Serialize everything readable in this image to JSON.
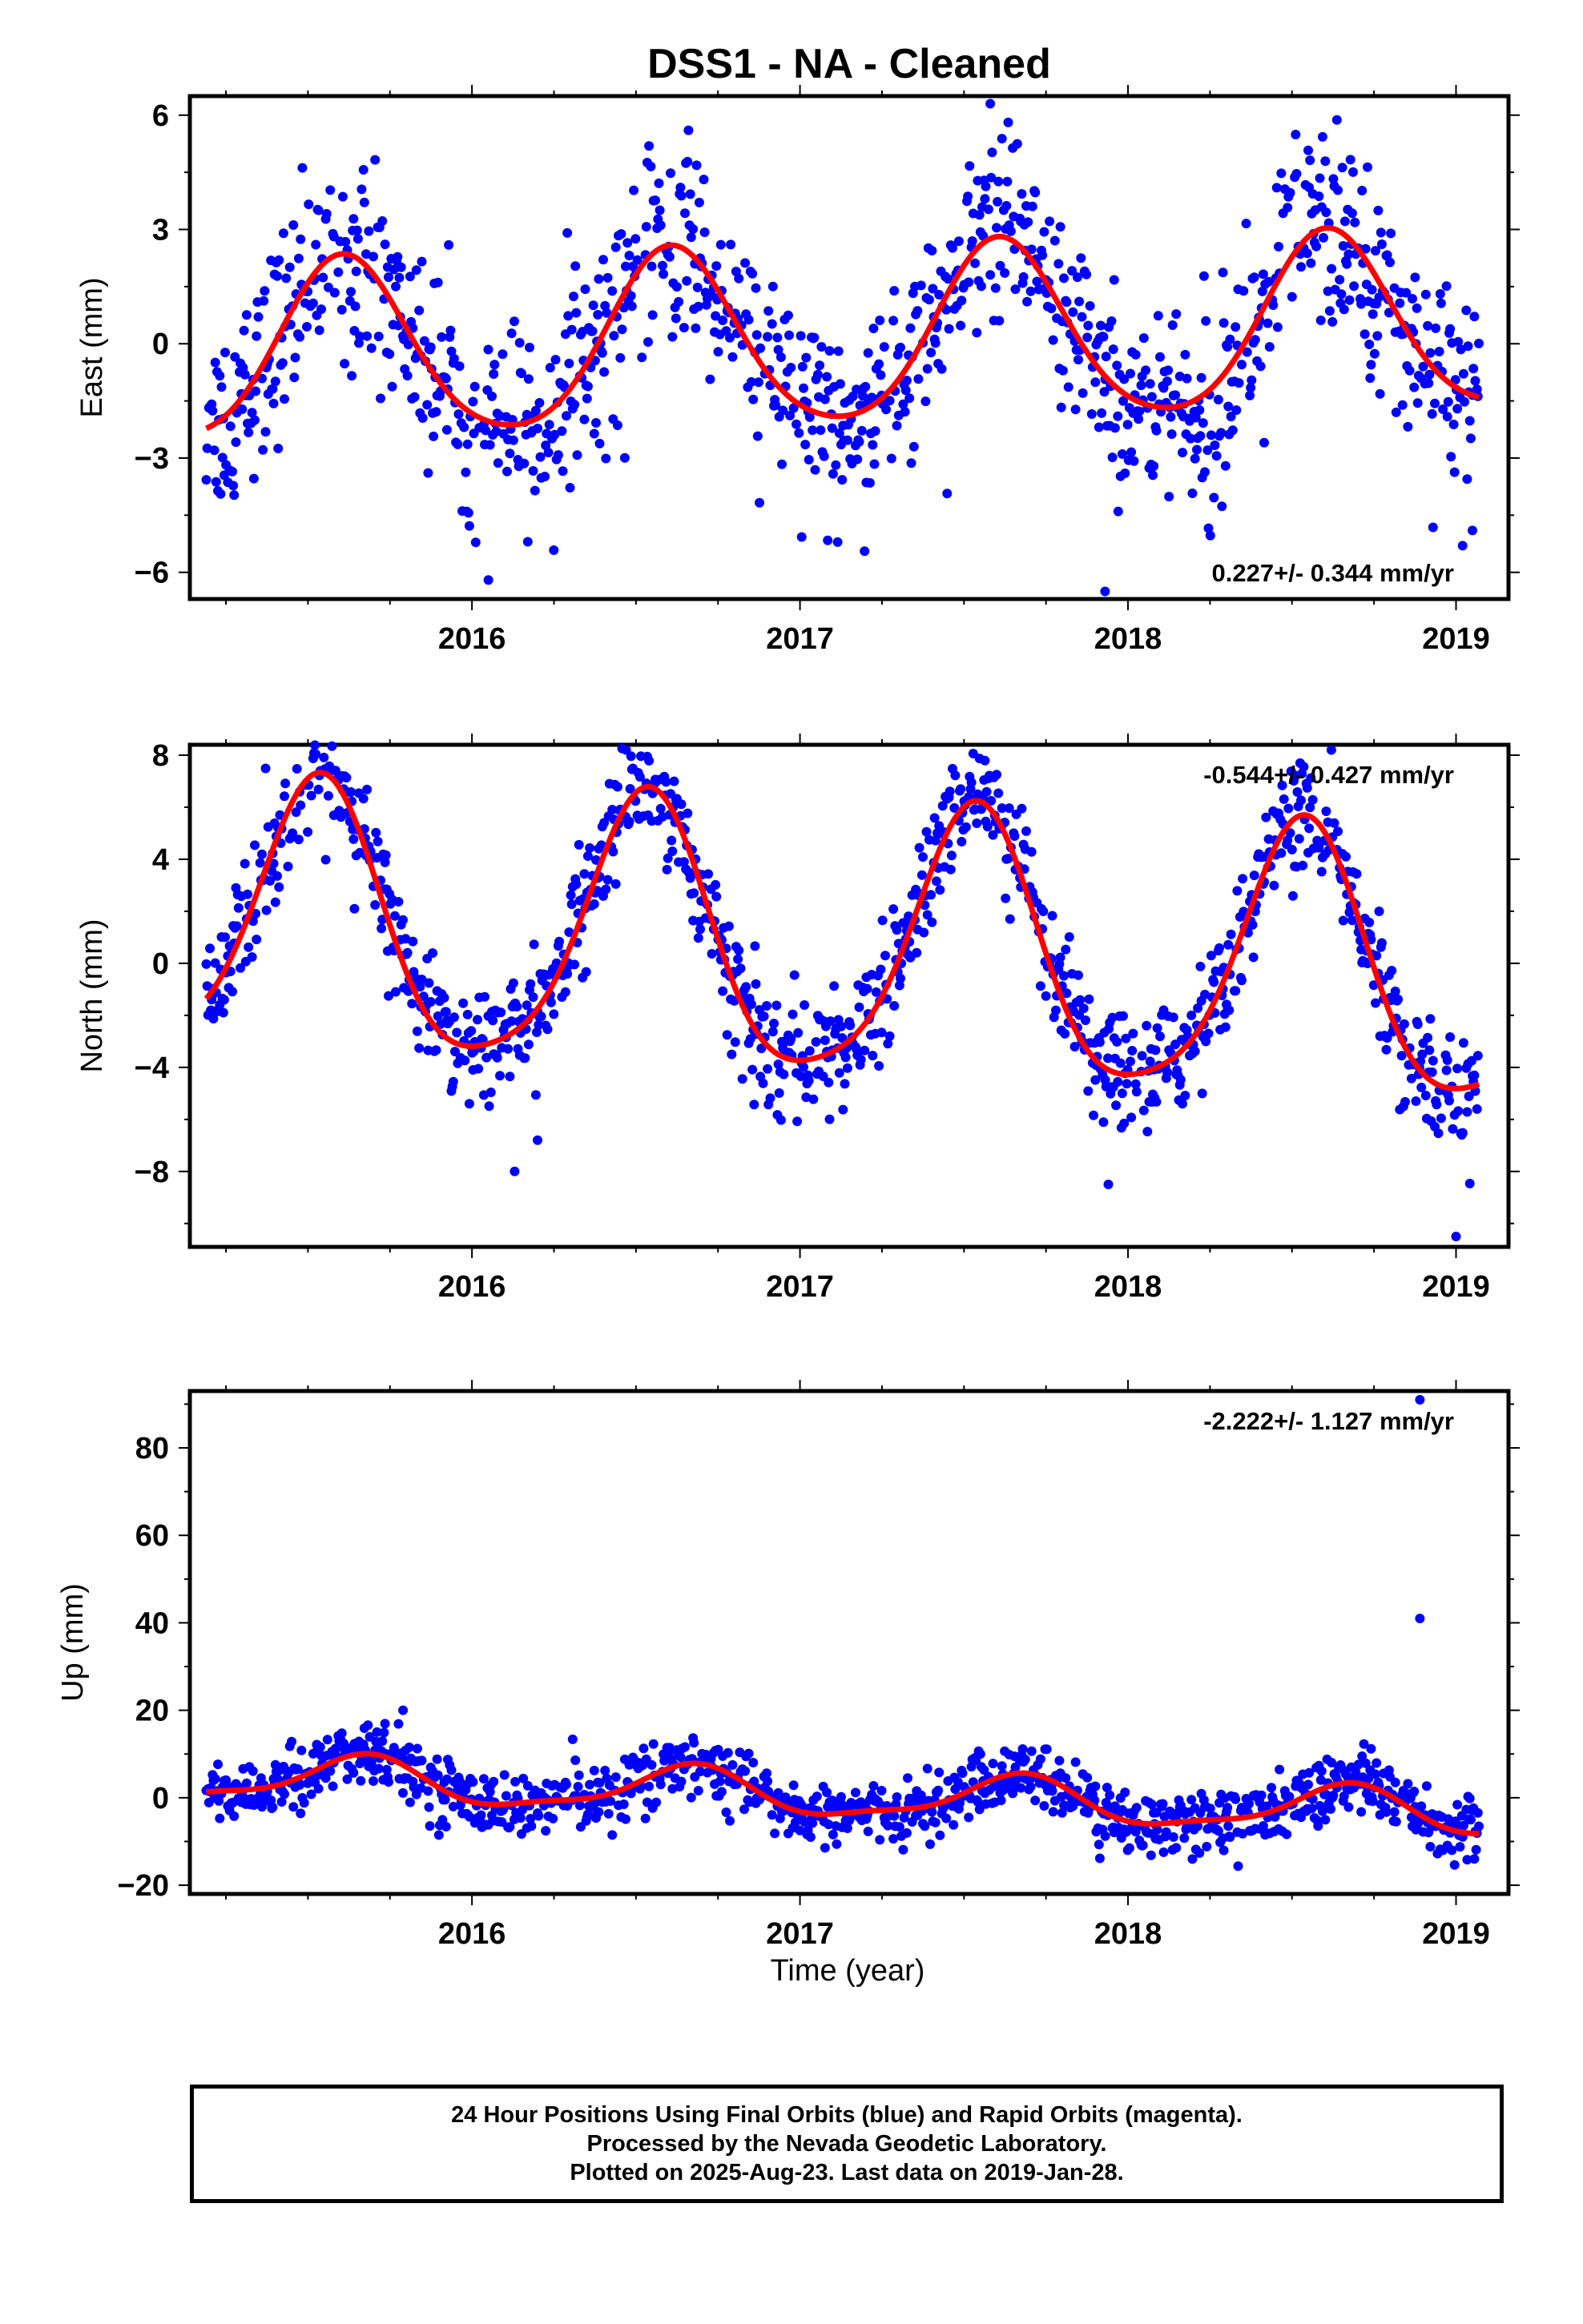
{
  "title": "DSS1  - NA - Cleaned",
  "xlabel": "Time (year)",
  "footer": {
    "line1": "24 Hour Positions Using Final Orbits (blue) and Rapid Orbits (magenta).",
    "line2": "Processed by the Nevada Geodetic Laboratory.",
    "line3": "Plotted on 2025-Aug-23. Last data on 2019-Jan-28."
  },
  "colors": {
    "points": "#0000ff",
    "fit": "#ff0000",
    "frame": "#000000"
  },
  "chart_data": [
    {
      "type": "scatter",
      "component": "east",
      "ylabel": "East (mm)",
      "rate_label": "0.227+/- 0.344 mm/yr",
      "rate_position": "bottom-right",
      "xlim": [
        2015.14,
        2019.16
      ],
      "ylim": [
        -6.7,
        6.5
      ],
      "xticks": [
        2016,
        2017,
        2018,
        2019
      ],
      "yticks": [
        -6,
        -3,
        0,
        3,
        6
      ],
      "ytick_labels": [
        "−6",
        "−3",
        "0",
        "3",
        "6"
      ],
      "grid": false,
      "data_start": 2015.19,
      "data_end": 2019.07,
      "fit": {
        "mean": 0.1,
        "trend": 0.227,
        "annual_amp": 2.3,
        "annual_peak": 0.61,
        "semiannual_amp": 0.3,
        "semiannual_peak": 0.1
      },
      "scatter_sd": 1.3,
      "outliers": [
        [
          2016.66,
          5.6
        ],
        [
          2017.58,
          6.3
        ],
        [
          2017.93,
          -6.5
        ],
        [
          2017.97,
          -4.4
        ],
        [
          2016.05,
          -6.2
        ],
        [
          2019.02,
          -5.3
        ],
        [
          2019.05,
          -4.9
        ]
      ]
    },
    {
      "type": "scatter",
      "component": "north",
      "ylabel": "North (mm)",
      "rate_label": "-0.544+/- 0.427 mm/yr",
      "rate_position": "top-right",
      "xlim": [
        2015.14,
        2019.16
      ],
      "ylim": [
        -10.9,
        8.4
      ],
      "xticks": [
        2016,
        2017,
        2018,
        2019
      ],
      "yticks": [
        -8,
        -4,
        0,
        4,
        8
      ],
      "ytick_labels": [
        "−8",
        "−4",
        "0",
        "4",
        "8"
      ],
      "grid": false,
      "data_start": 2015.19,
      "data_end": 2019.07,
      "fit": {
        "mean": 0.5,
        "trend": -0.544,
        "annual_amp": 5.1,
        "annual_peak": 0.53,
        "semiannual_amp": 0.9,
        "semiannual_peak": 0.55
      },
      "scatter_sd": 1.1,
      "outliers": [
        [
          2016.13,
          -8.0
        ],
        [
          2017.94,
          -8.5
        ],
        [
          2019.0,
          -10.5
        ],
        [
          2016.2,
          -6.8
        ],
        [
          2018.62,
          8.2
        ],
        [
          2016.47,
          8.2
        ]
      ]
    },
    {
      "type": "scatter",
      "component": "up",
      "ylabel": "Up (mm)",
      "rate_label": "-2.222+/- 1.127 mm/yr",
      "rate_position": "top-right",
      "xlim": [
        2015.14,
        2019.16
      ],
      "ylim": [
        -22,
        93
      ],
      "xticks": [
        2016,
        2017,
        2018,
        2019
      ],
      "yticks": [
        -20,
        0,
        20,
        40,
        60,
        80
      ],
      "ytick_labels": [
        "−20",
        "0",
        "20",
        "40",
        "60",
        "80"
      ],
      "grid": false,
      "data_start": 2015.19,
      "data_end": 2019.07,
      "fit": {
        "mean": 0.5,
        "trend": -2.222,
        "annual_amp": 5.0,
        "annual_peak": 0.66,
        "semiannual_amp": 1.5,
        "semiannual_peak": 0.2
      },
      "scatter_sd": 3.6,
      "outliers": [
        [
          2018.89,
          91
        ],
        [
          2018.89,
          41
        ],
        [
          2015.79,
          20
        ]
      ]
    }
  ]
}
